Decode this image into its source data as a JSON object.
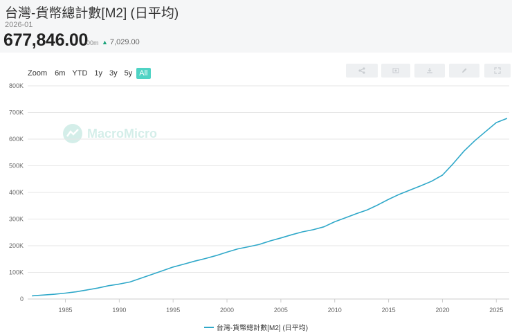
{
  "header": {
    "title": "台灣-貨幣總計數[M2] (日平均)",
    "date": "2026-01",
    "value": "677,846.00",
    "value_unit": "00m",
    "change": "7,029.00",
    "change_color": "#1aa37a"
  },
  "range_selector": {
    "zoom_label": "Zoom",
    "buttons": [
      "6m",
      "YTD",
      "1y",
      "3y",
      "5y",
      "All"
    ],
    "active": "All",
    "active_color": "#4fd3c4"
  },
  "toolbar": {
    "icons": [
      "share-icon",
      "image-icon",
      "download-icon",
      "edit-icon",
      "fullscreen-icon"
    ]
  },
  "watermark": {
    "text": "MacroMicro"
  },
  "chart_data": {
    "type": "line",
    "series": [
      {
        "name": "台灣-貨幣總計數[M2] (日平均)",
        "color": "#2fa8c9",
        "x": [
          1981.9,
          1983,
          1984,
          1985,
          1986,
          1987,
          1988,
          1989,
          1990,
          1991,
          1992,
          1993,
          1994,
          1995,
          1996,
          1997,
          1998,
          1999,
          2000,
          2001,
          2002,
          2003,
          2004,
          2005,
          2006,
          2007,
          2008,
          2009,
          2010,
          2011,
          2012,
          2013,
          2014,
          2015,
          2016,
          2017,
          2018,
          2019,
          2020,
          2021,
          2022,
          2023,
          2024,
          2025,
          2026.0
        ],
        "y": [
          12000,
          15000,
          18000,
          22000,
          27000,
          34000,
          41000,
          50000,
          56000,
          64000,
          78000,
          92000,
          106000,
          120000,
          131000,
          142000,
          152000,
          163000,
          176000,
          188000,
          196000,
          205000,
          218000,
          229000,
          241000,
          252000,
          260000,
          271000,
          290000,
          305000,
          320000,
          334000,
          353000,
          374000,
          393000,
          409000,
          425000,
          442000,
          465000,
          508000,
          555000,
          594000,
          628000,
          662000,
          677846
        ]
      }
    ],
    "xlim": [
      1981.5,
      2026.2
    ],
    "ylim": [
      0,
      800000
    ],
    "x_ticks": [
      1985,
      1990,
      1995,
      2000,
      2005,
      2010,
      2015,
      2020,
      2025
    ],
    "y_ticks": [
      0,
      100000,
      200000,
      300000,
      400000,
      500000,
      600000,
      700000,
      800000
    ],
    "y_tick_labels": [
      "0",
      "100K",
      "200K",
      "300K",
      "400K",
      "500K",
      "600K",
      "700K",
      "800K"
    ],
    "grid": true,
    "legend": "bottom-center"
  },
  "legend": {
    "label": "台灣-貨幣總計數[M2] (日平均)"
  }
}
